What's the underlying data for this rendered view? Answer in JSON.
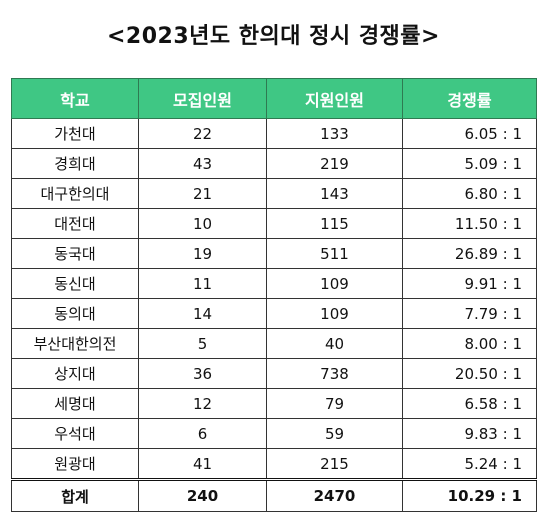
{
  "title": "<2023년도 한의대 정시 경쟁률>",
  "headers": [
    "학교",
    "모집인원",
    "지원인원",
    "경쟁률"
  ],
  "rows": [
    {
      "school": "가천대",
      "quota": "22",
      "applicants": "133",
      "rate": "6.05 : 1"
    },
    {
      "school": "경희대",
      "quota": "43",
      "applicants": "219",
      "rate": "5.09 : 1"
    },
    {
      "school": "대구한의대",
      "quota": "21",
      "applicants": "143",
      "rate": "6.80 : 1"
    },
    {
      "school": "대전대",
      "quota": "10",
      "applicants": "115",
      "rate": "11.50 : 1"
    },
    {
      "school": "동국대",
      "quota": "19",
      "applicants": "511",
      "rate": "26.89 : 1"
    },
    {
      "school": "동신대",
      "quota": "11",
      "applicants": "109",
      "rate": "9.91 : 1"
    },
    {
      "school": "동의대",
      "quota": "14",
      "applicants": "109",
      "rate": "7.79 : 1"
    },
    {
      "school": "부산대한의전",
      "quota": "5",
      "applicants": "40",
      "rate": "8.00 : 1"
    },
    {
      "school": "상지대",
      "quota": "36",
      "applicants": "738",
      "rate": "20.50 : 1"
    },
    {
      "school": "세명대",
      "quota": "12",
      "applicants": "79",
      "rate": "6.58 : 1"
    },
    {
      "school": "우석대",
      "quota": "6",
      "applicants": "59",
      "rate": "9.83 : 1"
    },
    {
      "school": "원광대",
      "quota": "41",
      "applicants": "215",
      "rate": "5.24 : 1"
    }
  ],
  "total": {
    "label": "합계",
    "quota": "240",
    "applicants": "2470",
    "rate": "10.29 : 1"
  },
  "colors": {
    "header_bg": "#3fc784",
    "header_text": "#ffffff",
    "border": "#333333"
  }
}
